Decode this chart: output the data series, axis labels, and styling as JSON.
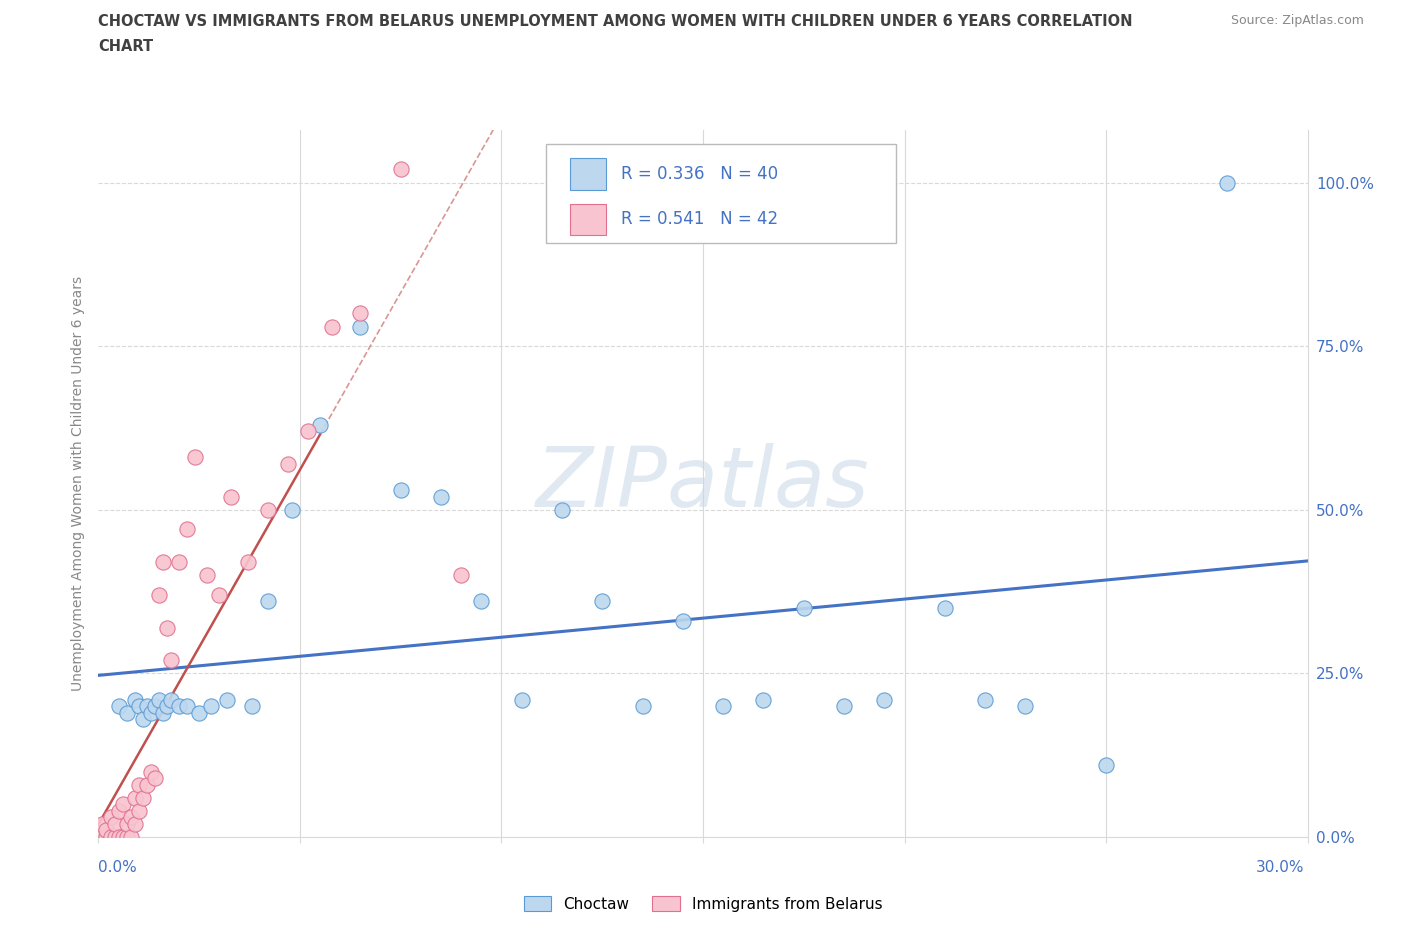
{
  "title_line1": "CHOCTAW VS IMMIGRANTS FROM BELARUS UNEMPLOYMENT AMONG WOMEN WITH CHILDREN UNDER 6 YEARS CORRELATION",
  "title_line2": "CHART",
  "source": "Source: ZipAtlas.com",
  "ylabel": "Unemployment Among Women with Children Under 6 years",
  "watermark": "ZIPatlas",
  "legend_r1": "R = 0.336",
  "legend_n1": "N = 40",
  "legend_r2": "R = 0.541",
  "legend_n2": "N = 42",
  "blue_fill": "#BDD7EE",
  "blue_edge": "#5B9BD5",
  "pink_fill": "#F8C4CF",
  "pink_edge": "#E07090",
  "blue_line": "#4472C4",
  "pink_line": "#C0504D",
  "text_color": "#4472C4",
  "title_color": "#404040",
  "grid_color": "#D9D9D9",
  "background": "#FFFFFF",
  "x_min": 0.0,
  "x_max": 0.3,
  "y_min": 0.0,
  "y_max": 1.08,
  "y_ticks": [
    0.0,
    0.25,
    0.5,
    0.75,
    1.0
  ],
  "y_tick_labels": [
    "0.0%",
    "25.0%",
    "50.0%",
    "75.0%",
    "100.0%"
  ],
  "choctaw_x": [
    0.005,
    0.007,
    0.009,
    0.01,
    0.011,
    0.012,
    0.013,
    0.014,
    0.015,
    0.016,
    0.017,
    0.018,
    0.02,
    0.022,
    0.025,
    0.028,
    0.032,
    0.038,
    0.042,
    0.048,
    0.055,
    0.065,
    0.075,
    0.085,
    0.095,
    0.105,
    0.115,
    0.125,
    0.135,
    0.145,
    0.155,
    0.165,
    0.175,
    0.185,
    0.195,
    0.21,
    0.22,
    0.23,
    0.25,
    0.28
  ],
  "choctaw_y": [
    0.2,
    0.19,
    0.21,
    0.2,
    0.18,
    0.2,
    0.19,
    0.2,
    0.21,
    0.19,
    0.2,
    0.21,
    0.2,
    0.2,
    0.19,
    0.2,
    0.21,
    0.2,
    0.36,
    0.5,
    0.63,
    0.78,
    0.53,
    0.52,
    0.36,
    0.21,
    0.5,
    0.36,
    0.2,
    0.33,
    0.2,
    0.21,
    0.35,
    0.2,
    0.21,
    0.35,
    0.21,
    0.2,
    0.11,
    1.0
  ],
  "belarus_x": [
    0.001,
    0.001,
    0.002,
    0.002,
    0.003,
    0.003,
    0.004,
    0.004,
    0.005,
    0.005,
    0.006,
    0.006,
    0.007,
    0.007,
    0.008,
    0.008,
    0.009,
    0.009,
    0.01,
    0.01,
    0.011,
    0.012,
    0.013,
    0.014,
    0.015,
    0.016,
    0.017,
    0.018,
    0.02,
    0.022,
    0.024,
    0.027,
    0.03,
    0.033,
    0.037,
    0.042,
    0.047,
    0.052,
    0.058,
    0.065,
    0.075,
    0.09
  ],
  "belarus_y": [
    0.0,
    0.02,
    0.0,
    0.01,
    0.0,
    0.03,
    0.0,
    0.02,
    0.0,
    0.04,
    0.0,
    0.05,
    0.0,
    0.02,
    0.0,
    0.03,
    0.02,
    0.06,
    0.04,
    0.08,
    0.06,
    0.08,
    0.1,
    0.09,
    0.37,
    0.42,
    0.32,
    0.27,
    0.42,
    0.47,
    0.58,
    0.4,
    0.37,
    0.52,
    0.42,
    0.5,
    0.57,
    0.62,
    0.78,
    0.8,
    1.02,
    0.4
  ]
}
